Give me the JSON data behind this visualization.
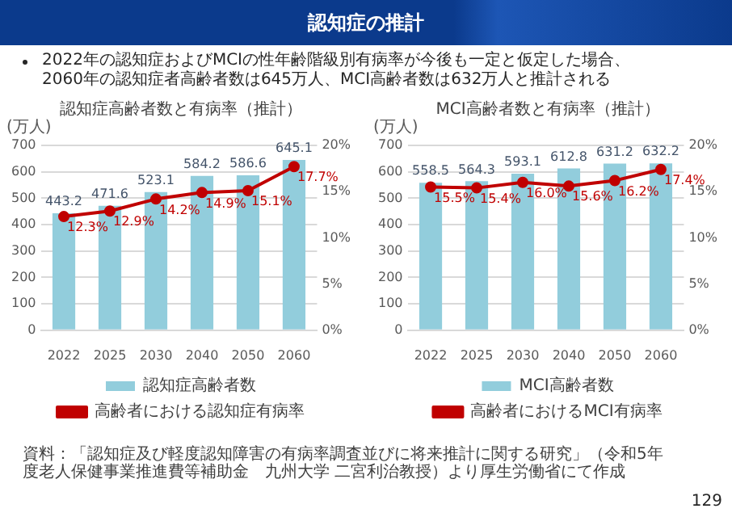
{
  "chart_data": [
    {
      "type": "other",
      "title": "認知症の推計",
      "annotations": [
        "2022年の認知症およびMCIの性年齢階級別有病率が今後も一定と仮定した場合、\n2060年の認知症者高齢者数は645万人、MCI高齢者数は632万人と推計される",
        "資料：「認知症及び軽度認知障害の有病率調査並びに将来推計に関する研究」（令和5年度老人保健事業推進費等補助金　九州大学 二宮利治教授）より厚生労働省にて作成",
        "129"
      ]
    },
    {
      "type": "bar",
      "title": "認知症高齢者数と有病率（推計）",
      "ylabel": "(万人)",
      "categories": [
        "2022",
        "2025",
        "2030",
        "2040",
        "2050",
        "2060"
      ],
      "series": [
        {
          "name": "認知症高齢者数",
          "type": "bar",
          "color": "#92cddc",
          "values": [
            443.2,
            471.6,
            523.1,
            584.2,
            586.6,
            645.1
          ],
          "value_labels": [
            "443.2",
            "471.6",
            "523.1",
            "584.2",
            "586.6",
            "645.1"
          ]
        },
        {
          "name": "高齢者における認知症有病率",
          "type": "line",
          "axis": "y2",
          "color": "#c00000",
          "marker": "circle",
          "values": [
            12.3,
            12.9,
            14.2,
            14.9,
            15.1,
            17.7
          ],
          "value_labels": [
            "12.3%",
            "12.9%",
            "14.2%",
            "14.9%",
            "15.1%",
            "17.7%"
          ]
        }
      ],
      "ylim": [
        0,
        700
      ],
      "yticks": [
        0,
        100,
        200,
        300,
        400,
        500,
        600,
        700
      ],
      "y2lim": [
        0,
        20
      ],
      "y2ticks": [
        {
          "value": 0,
          "label": "0%"
        },
        {
          "value": 5,
          "label": "5%"
        },
        {
          "value": 10,
          "label": "10%"
        },
        {
          "value": 15,
          "label": "15%"
        },
        {
          "value": 20,
          "label": "20%"
        }
      ],
      "grid": "y",
      "legend": "bottom"
    },
    {
      "type": "bar",
      "title": "MCI高齢者数と有病率（推計）",
      "ylabel": "(万人)",
      "categories": [
        "2022",
        "2025",
        "2030",
        "2040",
        "2050",
        "2060"
      ],
      "series": [
        {
          "name": "MCI高齢者数",
          "type": "bar",
          "color": "#92cddc",
          "values": [
            558.5,
            564.3,
            593.1,
            612.8,
            631.2,
            632.2
          ],
          "value_labels": [
            "558.5",
            "564.3",
            "593.1",
            "612.8",
            "631.2",
            "632.2"
          ]
        },
        {
          "name": "高齢者におけるMCI有病率",
          "type": "line",
          "axis": "y2",
          "color": "#c00000",
          "marker": "circle",
          "values": [
            15.5,
            15.4,
            16.0,
            15.6,
            16.2,
            17.4
          ],
          "value_labels": [
            "15.5%",
            "15.4%",
            "16.0%",
            "15.6%",
            "16.2%",
            "17.4%"
          ]
        }
      ],
      "ylim": [
        0,
        700
      ],
      "yticks": [
        0,
        100,
        200,
        300,
        400,
        500,
        600,
        700
      ],
      "y2lim": [
        0,
        20
      ],
      "y2ticks": [
        {
          "value": 0,
          "label": "0%"
        },
        {
          "value": 5,
          "label": "5%"
        },
        {
          "value": 10,
          "label": "10%"
        },
        {
          "value": 15,
          "label": "15%"
        },
        {
          "value": 20,
          "label": "20%"
        }
      ],
      "grid": "y",
      "legend": "bottom"
    }
  ]
}
